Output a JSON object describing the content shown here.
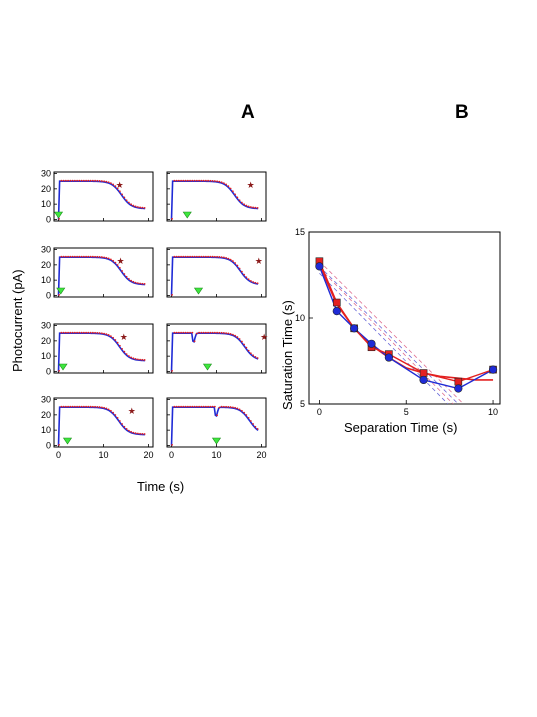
{
  "panel_labels": {
    "a": "A",
    "b": "B"
  },
  "colors": {
    "blue": "#1f2bd6",
    "red": "#e32020",
    "star": "#8b1a1a",
    "triangle": "#3ee63e",
    "dashed_blue": "#6a6ad8",
    "dashed_pink": "#e07090"
  },
  "chart_data": [
    {
      "type": "line",
      "panel": "A",
      "xlabel": "Time (s)",
      "ylabel": "Photocurrent (pA)",
      "xlim": [
        -1,
        21
      ],
      "ylim": [
        -1,
        31
      ],
      "xticks": [
        "0",
        "10",
        "20"
      ],
      "yticks": [
        "0",
        "10",
        "20",
        "30"
      ],
      "layout": "4 rows x 2 columns",
      "series_colors": [
        "blue",
        "red"
      ],
      "subplots": [
        {
          "flash_time": 0,
          "saturation_time": 13.2,
          "star_x": 13.6,
          "star_y": 22.6,
          "notch": false
        },
        {
          "flash_time": 3.5,
          "saturation_time": 13.2,
          "star_x": 17.6,
          "star_y": 22.6,
          "notch": false
        },
        {
          "flash_time": 0.5,
          "saturation_time": 13.1,
          "star_x": 13.8,
          "star_y": 22.4,
          "notch": false
        },
        {
          "flash_time": 6,
          "saturation_time": 14.5,
          "star_x": 19.4,
          "star_y": 22.4,
          "notch": false
        },
        {
          "flash_time": 1,
          "saturation_time": 12.8,
          "star_x": 14.5,
          "star_y": 22.4,
          "notch": false
        },
        {
          "flash_time": 8,
          "saturation_time": 15.5,
          "star_x": 20.6,
          "star_y": 22.4,
          "notch": true,
          "notch_time": 4.5
        },
        {
          "flash_time": 2,
          "saturation_time": 12.6,
          "star_x": 16.3,
          "star_y": 22.4,
          "notch": false
        },
        {
          "flash_time": 10,
          "saturation_time": 16.6,
          "star_x": null,
          "star_y": null,
          "notch": true,
          "notch_time": 9.5
        }
      ]
    },
    {
      "type": "line",
      "panel": "B",
      "xlabel": "Separation Time (s)",
      "ylabel": "Saturation Time (s)",
      "xlim": [
        -0.6,
        10.4
      ],
      "ylim": [
        5,
        15
      ],
      "xticks": [
        "0",
        "5",
        "10"
      ],
      "yticks": [
        "5",
        "10",
        "15"
      ],
      "series": [
        {
          "color": "blue",
          "marker": "circle",
          "x": [
            0,
            1,
            2,
            3,
            4,
            6,
            8,
            10
          ],
          "y": [
            13.0,
            10.4,
            9.4,
            8.5,
            7.7,
            6.4,
            5.9,
            7.0
          ]
        },
        {
          "color": "red",
          "marker": "square",
          "x": [
            0,
            1,
            2,
            3,
            4,
            6,
            8,
            10
          ],
          "y": [
            13.3,
            10.9,
            9.4,
            8.3,
            7.9,
            6.8,
            6.3,
            7.0
          ]
        }
      ],
      "fit_curve": {
        "color": "red",
        "x": [
          0,
          1,
          2,
          3,
          4,
          5,
          6,
          7,
          8,
          9,
          10
        ],
        "y": [
          13.1,
          10.8,
          9.4,
          8.4,
          7.7,
          7.1,
          6.8,
          6.6,
          6.5,
          6.4,
          6.4
        ]
      },
      "dashed_lines": [
        {
          "color": "dashed_blue",
          "x": [
            0,
            8.0
          ],
          "y": [
            13.0,
            5.0
          ]
        },
        {
          "color": "dashed_blue",
          "x": [
            0,
            7.4
          ],
          "y": [
            12.6,
            5.0
          ]
        },
        {
          "color": "dashed_pink",
          "x": [
            0,
            8.3
          ],
          "y": [
            13.3,
            5.0
          ]
        },
        {
          "color": "dashed_pink",
          "x": [
            0,
            7.7
          ],
          "y": [
            12.9,
            5.0
          ]
        }
      ]
    }
  ]
}
